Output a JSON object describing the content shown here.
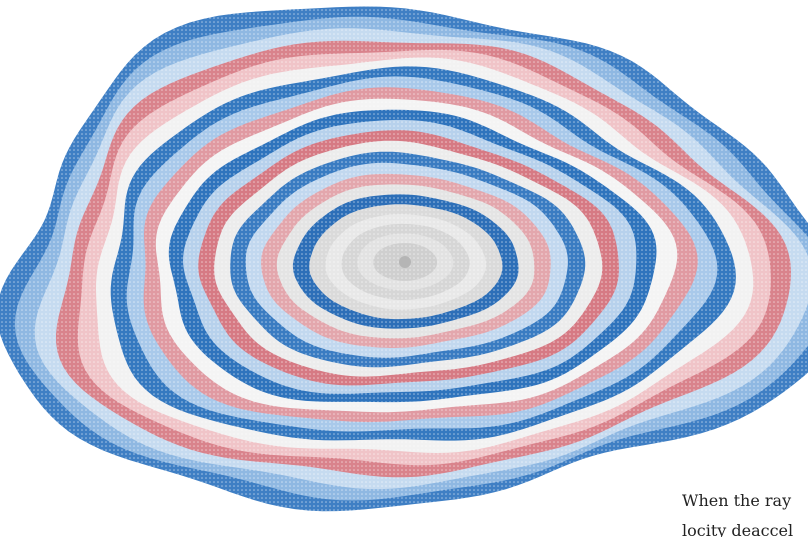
{
  "caption": {
    "lines": [
      "When the ray",
      "locity deaccel"
    ]
  }
}
